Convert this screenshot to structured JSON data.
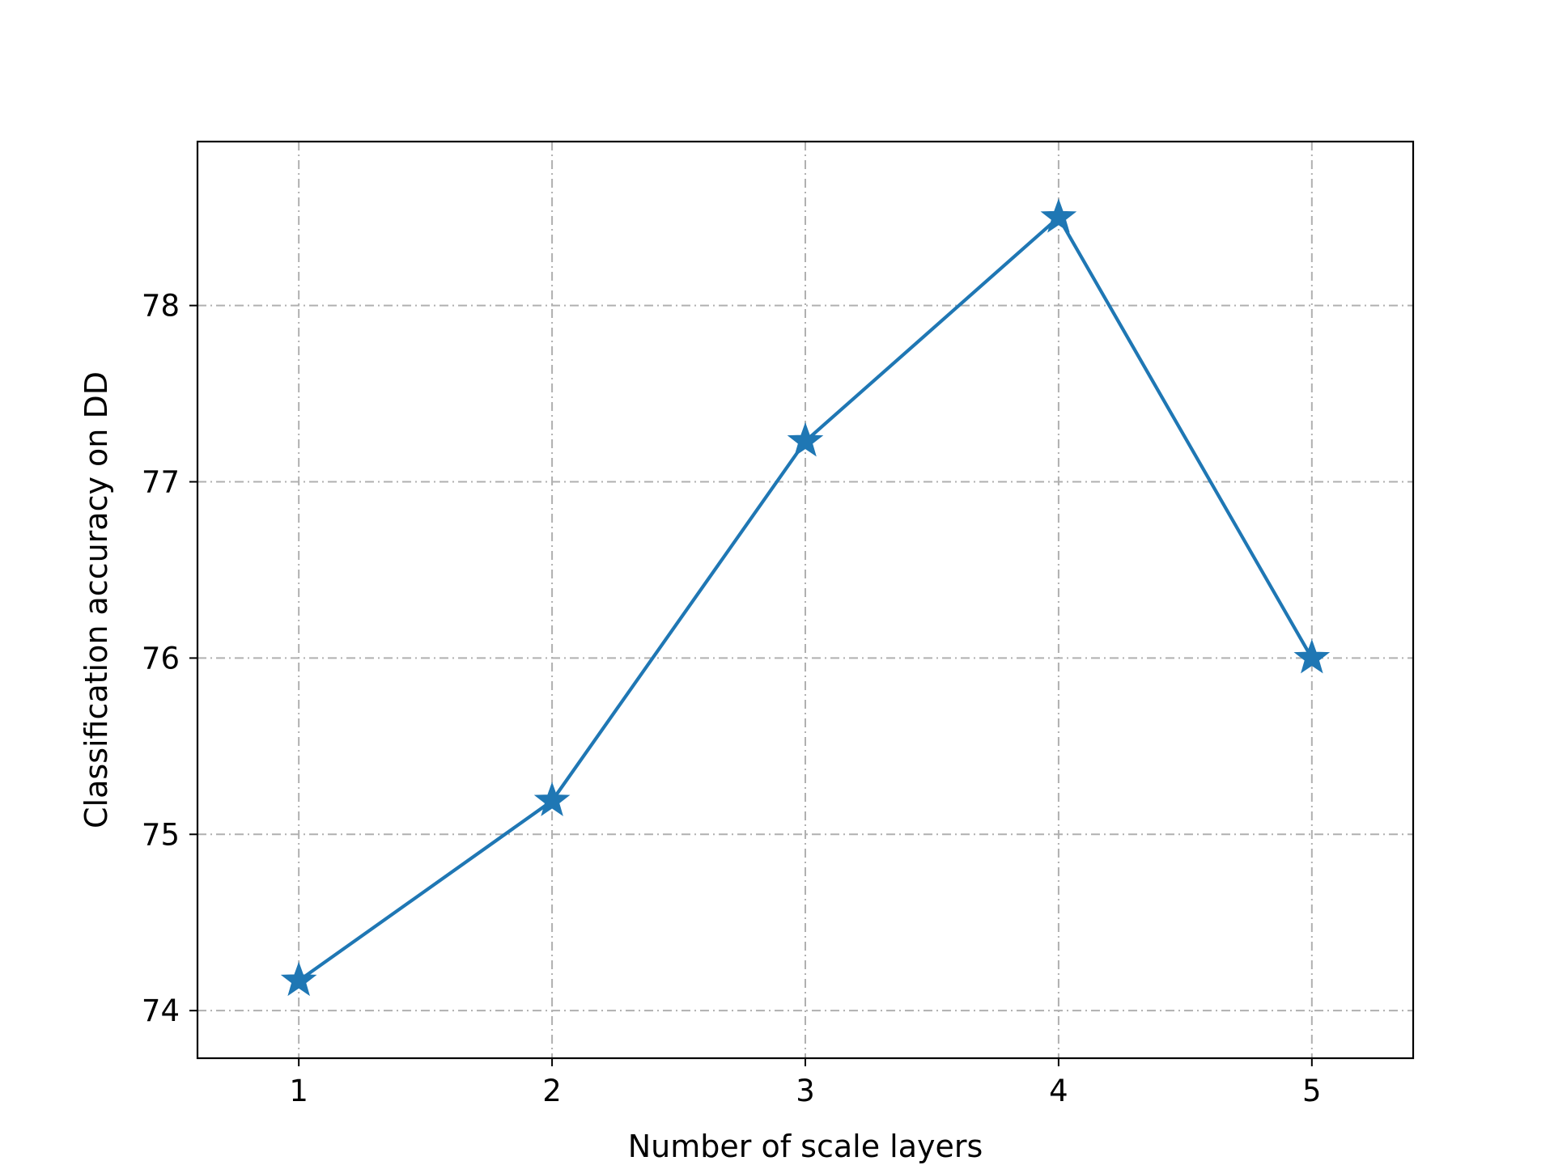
{
  "chart_data": {
    "type": "line",
    "title": "",
    "xlabel": "Number of scale layers",
    "ylabel": "Classification accuracy on DD",
    "x": [
      1,
      2,
      3,
      4,
      5
    ],
    "series": [
      {
        "values": [
          74.17,
          75.19,
          77.23,
          78.5,
          76.0
        ],
        "color": "#1f77b4",
        "marker": "star"
      }
    ],
    "xlim": [
      0.6,
      5.4
    ],
    "ylim": [
      73.73,
      78.93
    ],
    "xticks": [
      "1",
      "2",
      "3",
      "4",
      "5"
    ],
    "yticks": [
      "74",
      "75",
      "76",
      "77",
      "78"
    ],
    "grid": true,
    "legend": "none"
  }
}
